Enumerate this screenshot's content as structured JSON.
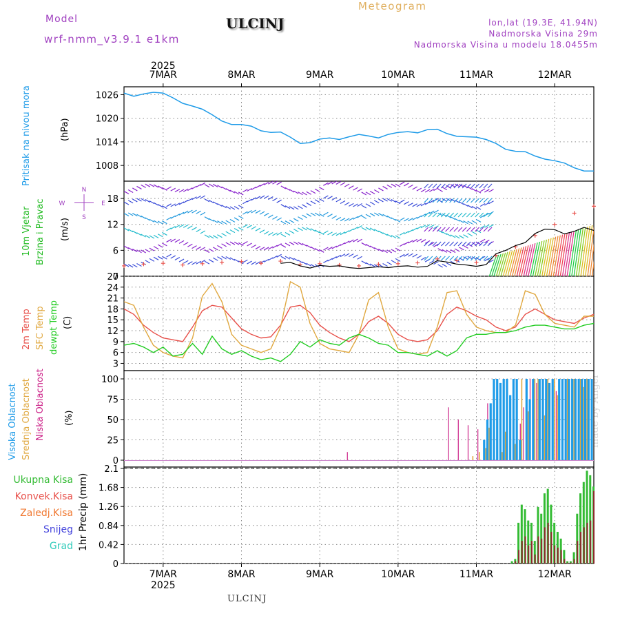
{
  "header": {
    "model_label": "Model",
    "model_name": "wrf-nmm_v3.9.1 e1km",
    "station": "ULCINJ",
    "meteogram": "Meteogram",
    "lonlat": "lon,lat (19.3E, 41.94N)",
    "altitude": "Nadmorska Visina 29m",
    "model_altitude": "Nadmorska Visina u modelu 18.0455m"
  },
  "footer": {
    "station": "ULCINJ",
    "credit": "made by Angel"
  },
  "colors": {
    "pressure": "#1e9be8",
    "wind_label": "#22bb22",
    "temp2m": "#e8504a",
    "sfc": "#e0a840",
    "dewpt": "#22cc22",
    "high_cloud": "#1e9be8",
    "mid_cloud": "#e0a840",
    "low_cloud": "#cc2288",
    "total_rain": "#33bb33",
    "conv_rain": "#e8504a",
    "freezing_rain": "#f07830",
    "snow": "#4444dd",
    "hail": "#33ccbb"
  },
  "chart_data": [
    {
      "type": "line",
      "panel": "pressure",
      "ylabel": [
        "Pritisak na nivou mora",
        "(hPa)"
      ],
      "ylim": [
        1004,
        1028
      ],
      "yticks": [
        1008,
        1014,
        1020,
        1026
      ],
      "x_ticks_top": [
        "7MAR",
        "8MAR",
        "9MAR",
        "10MAR",
        "11MAR",
        "12MAR"
      ],
      "year_top": "2025",
      "x_start_hours": -12,
      "x_end_hours": 132,
      "series": [
        {
          "x": [
            -12,
            -9,
            -6,
            -3,
            0,
            3,
            6,
            9,
            12,
            15,
            18,
            21,
            24,
            27,
            30,
            33,
            36,
            39,
            42,
            45,
            48,
            51,
            54,
            57,
            60,
            63,
            66,
            69,
            72,
            75,
            78,
            81,
            84,
            87,
            90,
            93,
            96,
            99,
            102,
            105,
            108,
            111,
            114,
            117,
            120,
            123,
            126,
            129,
            132
          ],
          "values": [
            1026.4,
            1025.6,
            1026.2,
            1026.6,
            1026.4,
            1025.2,
            1023.8,
            1023.1,
            1022.3,
            1020.9,
            1019.3,
            1018.4,
            1018.4,
            1018.0,
            1016.8,
            1016.4,
            1016.5,
            1015.2,
            1013.6,
            1013.8,
            1014.7,
            1015.0,
            1014.6,
            1015.3,
            1015.9,
            1015.5,
            1015.0,
            1015.9,
            1016.4,
            1016.6,
            1016.3,
            1017.1,
            1017.2,
            1016.1,
            1015.4,
            1015.3,
            1015.2,
            1014.6,
            1013.6,
            1012.1,
            1011.6,
            1011.5,
            1010.4,
            1009.6,
            1009.2,
            1008.6,
            1007.4,
            1006.6,
            1006.6
          ]
        }
      ]
    },
    {
      "type": "line",
      "panel": "wind",
      "ylabel": [
        "10m Vjetar",
        "Brzina i Pravac",
        "(m/s)"
      ],
      "ylim": [
        0,
        22
      ],
      "yticks": [
        0,
        6,
        12,
        18
      ],
      "compass": {
        "n": "N",
        "s": "S",
        "e": "E",
        "w": "W"
      },
      "series": [
        {
          "name": "speed",
          "x": [
            36,
            39,
            42,
            45,
            48,
            51,
            54,
            57,
            60,
            63,
            66,
            69,
            72,
            75,
            78,
            81,
            84,
            87,
            90,
            93,
            96,
            99,
            102,
            105,
            108,
            111,
            114,
            117,
            120,
            123,
            126,
            129,
            132
          ],
          "values": [
            3.0,
            3.2,
            2.4,
            1.9,
            2.5,
            2.3,
            2.4,
            2.0,
            1.8,
            2.0,
            2.2,
            2.0,
            2.3,
            2.4,
            2.1,
            2.3,
            3.6,
            3.3,
            2.8,
            2.6,
            2.3,
            2.7,
            5.2,
            6.0,
            7.1,
            7.8,
            9.9,
            10.9,
            10.8,
            9.8,
            10.4,
            11.3,
            10.6
          ]
        },
        {
          "name": "gust",
          "x": [
            -12,
            -6,
            0,
            6,
            12,
            18,
            24,
            30,
            36,
            42,
            48,
            54,
            60,
            66,
            72,
            78,
            84,
            90,
            96,
            102,
            108,
            114,
            120,
            126,
            132
          ],
          "values": [
            2.4,
            2.8,
            3.0,
            2.6,
            2.9,
            3.2,
            3.4,
            3.0,
            3.5,
            2.7,
            2.9,
            2.6,
            2.4,
            2.8,
            2.9,
            3.1,
            4.0,
            3.6,
            3.2,
            4.8,
            6.8,
            9.4,
            12.0,
            14.6,
            16.2
          ]
        }
      ]
    },
    {
      "type": "line",
      "panel": "temperature",
      "ylabel": [
        "2m Temp",
        "SFC Temp",
        "dewpt Temp",
        "(C)"
      ],
      "ylim": [
        1,
        27
      ],
      "yticks": [
        3,
        6,
        9,
        12,
        15,
        18,
        21,
        24,
        27
      ],
      "series": [
        {
          "name": "2m Temp",
          "x": [
            -12,
            -9,
            -6,
            -3,
            0,
            3,
            6,
            9,
            12,
            15,
            18,
            21,
            24,
            27,
            30,
            33,
            36,
            39,
            42,
            45,
            48,
            51,
            54,
            57,
            60,
            63,
            66,
            69,
            72,
            75,
            78,
            81,
            84,
            87,
            90,
            93,
            96,
            99,
            102,
            105,
            108,
            111,
            114,
            117,
            120,
            123,
            126,
            129,
            132
          ],
          "values": [
            18.0,
            16.5,
            13.5,
            11.5,
            10.0,
            9.5,
            9.0,
            13.0,
            17.5,
            19.0,
            18.5,
            15.5,
            12.5,
            11.0,
            10.0,
            10.3,
            13.5,
            18.5,
            19.0,
            17.0,
            13.5,
            11.5,
            10.0,
            9.0,
            11.0,
            14.5,
            16.0,
            14.0,
            11.0,
            9.5,
            9.0,
            9.5,
            12.0,
            16.5,
            18.5,
            17.5,
            16.0,
            15.0,
            13.0,
            12.0,
            13.0,
            16.5,
            18.0,
            16.5,
            15.0,
            14.5,
            14.0,
            15.5,
            16.5
          ]
        },
        {
          "name": "SFC Temp",
          "x": [
            -12,
            -9,
            -6,
            -3,
            0,
            3,
            6,
            9,
            12,
            15,
            18,
            21,
            24,
            27,
            30,
            33,
            36,
            39,
            42,
            45,
            48,
            51,
            54,
            57,
            60,
            63,
            66,
            69,
            72,
            75,
            78,
            81,
            84,
            87,
            90,
            93,
            96,
            99,
            102,
            105,
            108,
            111,
            114,
            117,
            120,
            123,
            126,
            129,
            132
          ],
          "values": [
            20.0,
            19.0,
            13.0,
            8.0,
            6.0,
            5.0,
            4.5,
            10.0,
            21.5,
            25.0,
            20.0,
            11.0,
            8.0,
            7.0,
            6.0,
            7.0,
            13.0,
            25.5,
            24.0,
            14.0,
            8.5,
            7.0,
            6.5,
            6.0,
            11.0,
            20.5,
            22.5,
            13.0,
            7.0,
            6.0,
            5.5,
            6.0,
            13.0,
            22.5,
            23.0,
            16.5,
            13.0,
            12.0,
            11.5,
            11.5,
            13.5,
            23.0,
            22.0,
            16.5,
            14.0,
            13.5,
            13.0,
            16.0,
            16.0
          ]
        },
        {
          "name": "dewpt Temp",
          "x": [
            -12,
            -9,
            -6,
            -3,
            0,
            3,
            6,
            9,
            12,
            15,
            18,
            21,
            24,
            27,
            30,
            33,
            36,
            39,
            42,
            45,
            48,
            51,
            54,
            57,
            60,
            63,
            66,
            69,
            72,
            75,
            78,
            81,
            84,
            87,
            90,
            93,
            96,
            99,
            102,
            105,
            108,
            111,
            114,
            117,
            120,
            123,
            126,
            129,
            132
          ],
          "values": [
            8.0,
            8.5,
            7.5,
            6.0,
            7.5,
            5.0,
            5.5,
            8.5,
            5.5,
            10.5,
            7.0,
            5.5,
            6.5,
            5.0,
            4.0,
            4.5,
            3.5,
            5.5,
            9.0,
            7.5,
            9.5,
            8.5,
            8.0,
            10.0,
            11.0,
            10.0,
            8.5,
            8.0,
            6.0,
            6.0,
            5.5,
            5.0,
            6.5,
            5.0,
            6.5,
            10.0,
            11.0,
            11.0,
            11.5,
            11.5,
            12.0,
            13.0,
            13.5,
            13.5,
            13.0,
            12.5,
            12.5,
            13.5,
            14.0
          ]
        }
      ]
    },
    {
      "type": "bar",
      "panel": "cloud",
      "ylabel": [
        "Visoka Oblacnost",
        "Srednja Oblacnost",
        "Niska Oblacnost",
        "(%)"
      ],
      "ylim": [
        0,
        100
      ],
      "yticks": [
        0,
        25,
        50,
        75,
        100
      ],
      "series": [
        {
          "name": "Niska Oblacnost",
          "x": [
            56,
            87,
            90,
            93,
            96,
            99,
            100,
            101,
            107,
            108,
            109,
            110,
            111,
            112,
            113,
            114,
            115,
            116,
            117,
            118,
            119,
            120,
            121,
            122,
            123,
            124,
            125,
            126,
            127,
            128,
            129,
            130,
            131
          ],
          "values": [
            10,
            65,
            50,
            43,
            38,
            70,
            25,
            58,
            10,
            20,
            45,
            65,
            30,
            100,
            100,
            95,
            100,
            75,
            100,
            55,
            100,
            85,
            60,
            100,
            40,
            100,
            70,
            100,
            90,
            100,
            100,
            80,
            100
          ]
        },
        {
          "name": "Srednja Oblacnost",
          "x": [
            95,
            97,
            99,
            100,
            104,
            105,
            108,
            110,
            112,
            114,
            115,
            117,
            118,
            120,
            121,
            124,
            126,
            128,
            129,
            130
          ],
          "values": [
            5,
            10,
            15,
            40,
            10,
            35,
            20,
            100,
            60,
            100,
            100,
            55,
            100,
            100,
            80,
            100,
            100,
            100,
            90,
            100
          ]
        },
        {
          "name": "Visoka Oblacnost",
          "x": [
            98,
            99,
            100,
            101,
            102,
            103,
            104,
            105,
            106,
            107,
            108,
            109,
            111,
            112,
            113,
            115,
            116,
            117,
            118,
            119,
            121,
            122,
            123,
            124,
            125,
            126,
            127,
            128,
            129,
            130,
            131
          ],
          "values": [
            25,
            50,
            70,
            100,
            100,
            95,
            100,
            100,
            80,
            100,
            100,
            25,
            100,
            75,
            100,
            100,
            100,
            100,
            95,
            100,
            100,
            100,
            100,
            100,
            100,
            100,
            100,
            100,
            100,
            100,
            100
          ]
        }
      ]
    },
    {
      "type": "bar",
      "panel": "precip",
      "ylabel": [
        "1hr Precip (mm)"
      ],
      "legend": [
        "Ukupna Kisa",
        "Konvek.Kisa",
        "Zaledj.Kisa",
        "Snijeg",
        "Grad"
      ],
      "ylim": [
        0,
        2.1
      ],
      "yticks": [
        0,
        0.42,
        0.84,
        1.26,
        1.68,
        2.1
      ],
      "x_ticks_bottom": [
        "7MAR",
        "8MAR",
        "9MAR",
        "10MAR",
        "11MAR",
        "12MAR"
      ],
      "year_bottom": "2025",
      "series": [
        {
          "name": "Ukupna Kisa",
          "x": [
            107,
            108,
            109,
            110,
            111,
            112,
            113,
            114,
            115,
            116,
            117,
            118,
            119,
            120,
            121,
            122,
            123,
            124,
            125,
            126,
            127,
            128,
            129,
            130,
            131,
            132
          ],
          "values": [
            0.05,
            0.1,
            0.9,
            1.3,
            1.2,
            0.95,
            0.9,
            0.5,
            1.25,
            1.1,
            1.55,
            1.65,
            1.3,
            0.9,
            0.7,
            0.55,
            0.3,
            0.05,
            0.05,
            0.25,
            1.1,
            1.55,
            1.8,
            2.05,
            1.95,
            1.7
          ]
        },
        {
          "name": "Konvek.Kisa",
          "x": [
            108,
            109,
            110,
            111,
            112,
            113,
            114,
            115,
            116,
            117,
            118,
            119,
            120,
            121,
            122,
            123,
            124,
            125,
            126,
            127,
            128,
            129,
            130,
            131,
            132
          ],
          "values": [
            0.05,
            0.3,
            0.5,
            0.6,
            0.4,
            0.5,
            0.2,
            0.6,
            0.55,
            0.8,
            0.9,
            0.7,
            0.4,
            0.35,
            0.3,
            0.1,
            0.02,
            0.02,
            0.1,
            0.5,
            0.7,
            0.8,
            0.9,
            0.95,
            1.6
          ]
        }
      ]
    }
  ]
}
